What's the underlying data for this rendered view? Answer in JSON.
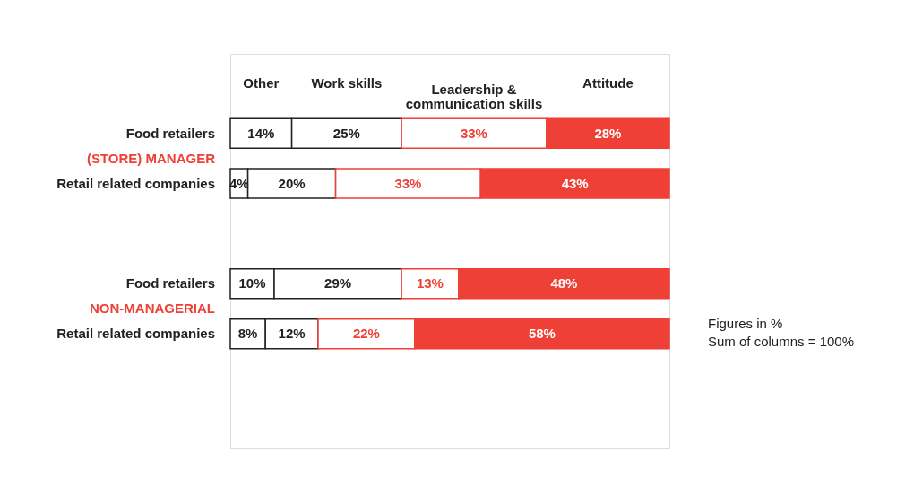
{
  "chart_data": {
    "type": "bar",
    "orientation": "horizontal",
    "stacked": true,
    "legend": "top",
    "categories": [
      "Food retailers",
      "Retail related companies",
      "Food retailers",
      "Retail related companies"
    ],
    "series": [
      {
        "name": "Other",
        "color": "#ffffff",
        "values": [
          14,
          4,
          10,
          8
        ],
        "value_labels": [
          "14%",
          "4%",
          "10%",
          "8%"
        ]
      },
      {
        "name": "Work skills",
        "color": "#ffffff",
        "values": [
          25,
          20,
          29,
          12
        ],
        "value_labels": [
          "25%",
          "20%",
          "29%",
          "12%"
        ]
      },
      {
        "name": "Leadership & communication skills",
        "color": "#ffffff",
        "values": [
          33,
          33,
          13,
          22
        ],
        "value_labels": [
          "33%",
          "33%",
          "13%",
          "22%"
        ]
      },
      {
        "name": "Attitude",
        "color": "#ee4036",
        "values": [
          28,
          43,
          48,
          58
        ],
        "value_labels": [
          "28%",
          "43%",
          "48%",
          "58%"
        ]
      }
    ],
    "annotations": [
      "(STORE) MANAGER",
      "NON-MANAGERIAL",
      "Figures in %",
      "Sum of columns = 100%"
    ]
  }
}
